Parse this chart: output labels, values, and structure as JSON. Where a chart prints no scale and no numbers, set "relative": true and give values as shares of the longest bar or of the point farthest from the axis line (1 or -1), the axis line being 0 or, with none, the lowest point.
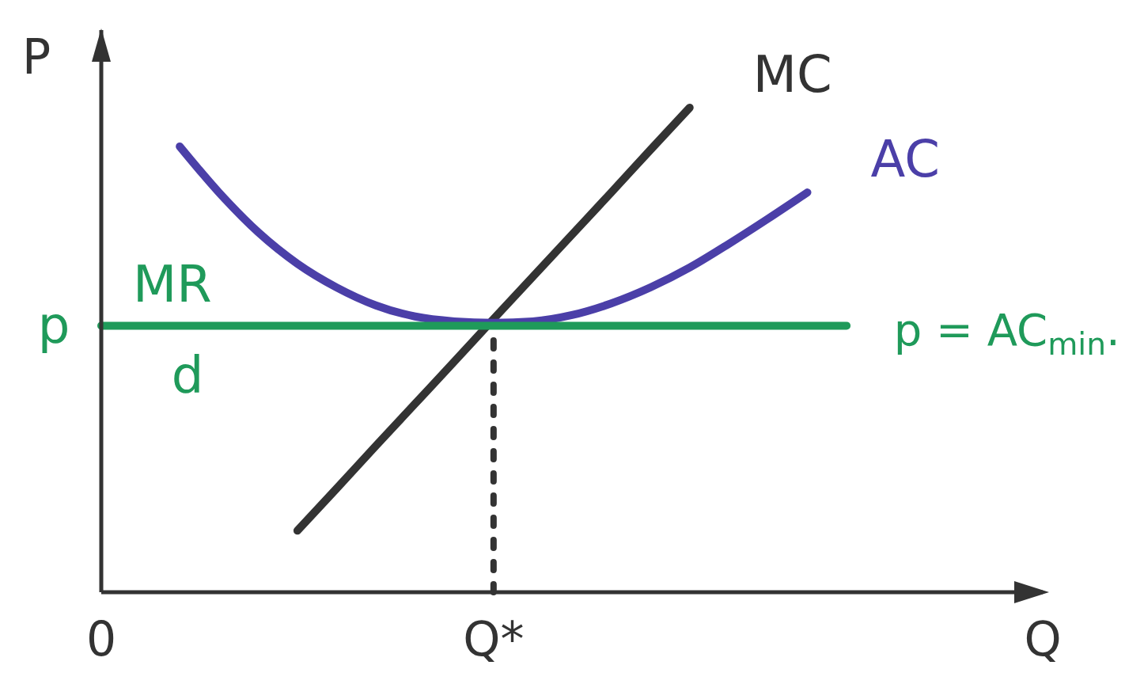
{
  "chart_data": {
    "type": "line",
    "relative": true,
    "ylabel": "P",
    "tick_labels": "x",
    "categories": [
      "0",
      null,
      null,
      null,
      null,
      null,
      null,
      null,
      null,
      null,
      "Q*",
      null,
      null,
      null,
      null,
      null,
      null,
      null,
      null,
      null,
      null,
      null,
      null,
      null,
      "Q"
    ],
    "series": [
      {
        "name": "MC",
        "color": "#333333",
        "values": [
          null,
          null,
          null,
          null,
          null,
          0.127,
          0.214,
          0.302,
          0.389,
          0.476,
          0.564,
          0.651,
          0.738,
          0.825,
          0.913,
          1.0,
          null,
          null,
          null,
          null,
          null,
          null,
          null,
          null,
          null
        ]
      },
      {
        "name": "AC",
        "color": "#4b3fa8",
        "values": [
          null,
          null,
          0.92,
          0.825,
          0.743,
          0.678,
          0.629,
          0.592,
          0.569,
          0.559,
          0.556,
          0.559,
          0.572,
          0.596,
          0.629,
          0.67,
          0.719,
          0.771,
          0.825,
          null,
          null,
          null,
          null,
          null,
          null
        ]
      },
      {
        "name": "MR",
        "color": "#1f9a5a",
        "values": [
          0.55,
          0.55,
          0.55,
          0.55,
          0.55,
          0.55,
          0.55,
          0.55,
          0.55,
          0.55,
          0.55,
          0.55,
          0.55,
          0.55,
          0.55,
          0.55,
          0.55,
          0.55,
          0.55,
          0.55,
          null,
          null,
          null,
          null,
          null
        ]
      }
    ],
    "ref_lines": [
      {
        "axis": "x",
        "value": "Q*",
        "line_style": "dotted",
        "color": "#333333"
      }
    ],
    "annotations": [
      "p",
      "d",
      "p = AC$_{min}$."
    ],
    "line_style": "solid",
    "marker": "none"
  }
}
